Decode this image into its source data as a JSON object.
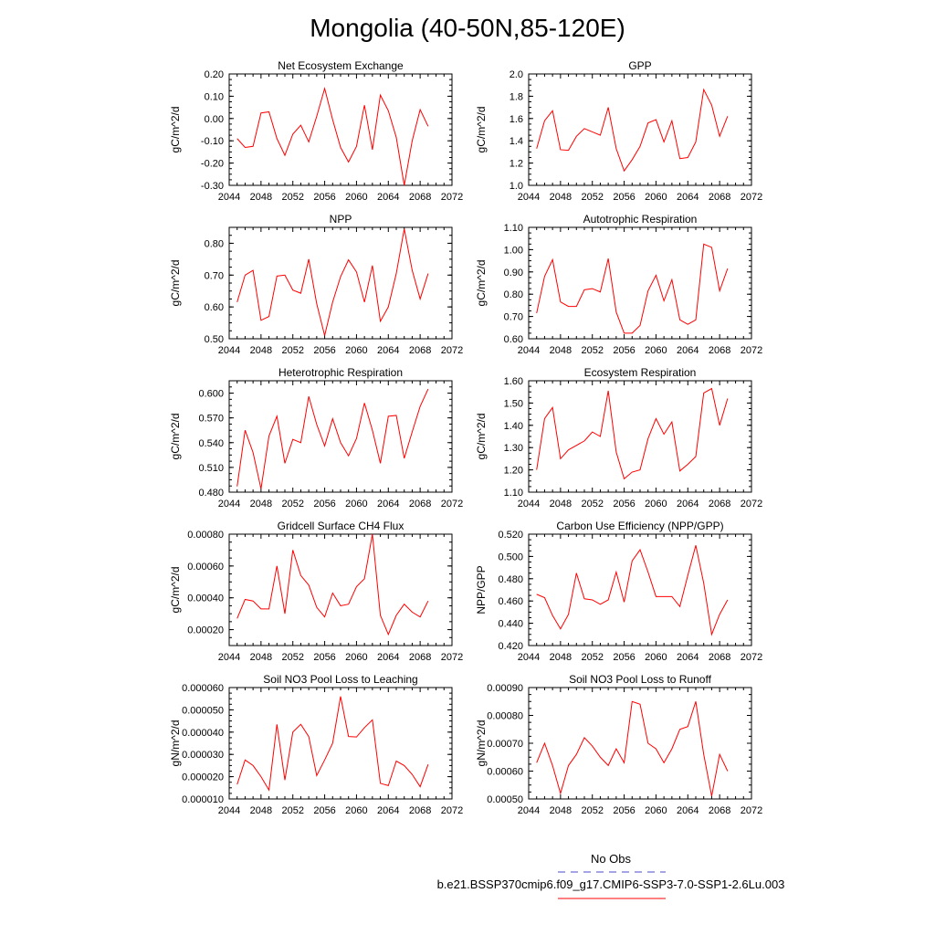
{
  "title": "Mongolia (40-50N,85-120E)",
  "colors": {
    "series": "#ff0000",
    "obs": "#4a4ad0",
    "axes": "#000000"
  },
  "legend": {
    "obs_label": "No Obs",
    "model_label": "b.e21.BSSP370cmip6.f09_g17.CMIP6-SSP3-7.0-SSP1-2.6Lu.003"
  },
  "chart_data": [
    {
      "type": "line",
      "title": "Net Ecosystem Exchange",
      "ylabel": "gC/m^2/d",
      "xlim": [
        2044,
        2072
      ],
      "xticks": [
        2044,
        2048,
        2052,
        2056,
        2060,
        2064,
        2068,
        2072
      ],
      "ylim": [
        -0.3,
        0.2
      ],
      "yticks": [
        "-0.30",
        "-0.20",
        "-0.10",
        "0.00",
        "0.10",
        "0.20"
      ],
      "x": [
        2045,
        2046,
        2047,
        2048,
        2049,
        2050,
        2051,
        2052,
        2053,
        2054,
        2055,
        2056,
        2057,
        2058,
        2059,
        2060,
        2061,
        2062,
        2063,
        2064,
        2065,
        2066,
        2067,
        2068,
        2069
      ],
      "y": [
        -0.09,
        -0.13,
        -0.125,
        0.025,
        0.03,
        -0.09,
        -0.165,
        -0.07,
        -0.03,
        -0.105,
        0.01,
        0.135,
        -0.005,
        -0.13,
        -0.195,
        -0.125,
        0.06,
        -0.14,
        0.105,
        0.035,
        -0.085,
        -0.3,
        -0.1,
        0.04,
        -0.035
      ]
    },
    {
      "type": "line",
      "title": "GPP",
      "ylabel": "gC/m^2/d",
      "xlim": [
        2044,
        2072
      ],
      "xticks": [
        2044,
        2048,
        2052,
        2056,
        2060,
        2064,
        2068,
        2072
      ],
      "ylim": [
        1.0,
        2.0
      ],
      "yticks": [
        "1.0",
        "1.2",
        "1.4",
        "1.6",
        "1.8",
        "2.0"
      ],
      "x": [
        2045,
        2046,
        2047,
        2048,
        2049,
        2050,
        2051,
        2052,
        2053,
        2054,
        2055,
        2056,
        2057,
        2058,
        2059,
        2060,
        2061,
        2062,
        2063,
        2064,
        2065,
        2066,
        2067,
        2068,
        2069
      ],
      "y": [
        1.33,
        1.58,
        1.67,
        1.32,
        1.315,
        1.44,
        1.51,
        1.48,
        1.45,
        1.7,
        1.33,
        1.13,
        1.23,
        1.35,
        1.56,
        1.59,
        1.39,
        1.58,
        1.24,
        1.25,
        1.39,
        1.86,
        1.72,
        1.44,
        1.62
      ]
    },
    {
      "type": "line",
      "title": "NPP",
      "ylabel": "gC/m^2/d",
      "xlim": [
        2044,
        2072
      ],
      "xticks": [
        2044,
        2048,
        2052,
        2056,
        2060,
        2064,
        2068,
        2072
      ],
      "ylim": [
        0.5,
        0.85
      ],
      "yticks": [
        "0.50",
        "0.60",
        "0.70",
        "0.80"
      ],
      "x": [
        2045,
        2046,
        2047,
        2048,
        2049,
        2050,
        2051,
        2052,
        2053,
        2054,
        2055,
        2056,
        2057,
        2058,
        2059,
        2060,
        2061,
        2062,
        2063,
        2064,
        2065,
        2066,
        2067,
        2068,
        2069
      ],
      "y": [
        0.615,
        0.7,
        0.715,
        0.558,
        0.57,
        0.697,
        0.7,
        0.653,
        0.643,
        0.75,
        0.61,
        0.51,
        0.615,
        0.695,
        0.748,
        0.71,
        0.615,
        0.73,
        0.555,
        0.6,
        0.705,
        0.845,
        0.715,
        0.625,
        0.705
      ]
    },
    {
      "type": "line",
      "title": "Autotrophic Respiration",
      "ylabel": "gC/m^2/d",
      "xlim": [
        2044,
        2072
      ],
      "xticks": [
        2044,
        2048,
        2052,
        2056,
        2060,
        2064,
        2068,
        2072
      ],
      "ylim": [
        0.6,
        1.1
      ],
      "yticks": [
        "0.60",
        "0.70",
        "0.80",
        "0.90",
        "1.00",
        "1.10"
      ],
      "x": [
        2045,
        2046,
        2047,
        2048,
        2049,
        2050,
        2051,
        2052,
        2053,
        2054,
        2055,
        2056,
        2057,
        2058,
        2059,
        2060,
        2061,
        2062,
        2063,
        2064,
        2065,
        2066,
        2067,
        2068,
        2069
      ],
      "y": [
        0.715,
        0.88,
        0.955,
        0.765,
        0.745,
        0.745,
        0.82,
        0.825,
        0.81,
        0.96,
        0.72,
        0.625,
        0.625,
        0.66,
        0.815,
        0.885,
        0.77,
        0.865,
        0.685,
        0.665,
        0.685,
        1.025,
        1.01,
        0.815,
        0.915
      ]
    },
    {
      "type": "line",
      "title": "Heterotrophic Respiration",
      "ylabel": "gC/m^2/d",
      "xlim": [
        2044,
        2072
      ],
      "xticks": [
        2044,
        2048,
        2052,
        2056,
        2060,
        2064,
        2068,
        2072
      ],
      "ylim": [
        0.48,
        0.615
      ],
      "yticks": [
        "0.480",
        "0.510",
        "0.540",
        "0.570",
        "0.600"
      ],
      "x": [
        2045,
        2046,
        2047,
        2048,
        2049,
        2050,
        2051,
        2052,
        2053,
        2054,
        2055,
        2056,
        2057,
        2058,
        2059,
        2060,
        2061,
        2062,
        2063,
        2064,
        2065,
        2066,
        2067,
        2068,
        2069
      ],
      "y": [
        0.487,
        0.555,
        0.528,
        0.484,
        0.548,
        0.572,
        0.515,
        0.544,
        0.54,
        0.596,
        0.562,
        0.536,
        0.569,
        0.54,
        0.524,
        0.545,
        0.588,
        0.555,
        0.515,
        0.572,
        0.573,
        0.521,
        0.553,
        0.584,
        0.605
      ]
    },
    {
      "type": "line",
      "title": "Ecosystem Respiration",
      "ylabel": "gC/m^2/d",
      "xlim": [
        2044,
        2072
      ],
      "xticks": [
        2044,
        2048,
        2052,
        2056,
        2060,
        2064,
        2068,
        2072
      ],
      "ylim": [
        1.1,
        1.6
      ],
      "yticks": [
        "1.10",
        "1.20",
        "1.30",
        "1.40",
        "1.50",
        "1.60"
      ],
      "x": [
        2045,
        2046,
        2047,
        2048,
        2049,
        2050,
        2051,
        2052,
        2053,
        2054,
        2055,
        2056,
        2057,
        2058,
        2059,
        2060,
        2061,
        2062,
        2063,
        2064,
        2065,
        2066,
        2067,
        2068,
        2069
      ],
      "y": [
        1.2,
        1.43,
        1.48,
        1.25,
        1.29,
        1.31,
        1.33,
        1.37,
        1.35,
        1.555,
        1.28,
        1.16,
        1.19,
        1.2,
        1.34,
        1.43,
        1.36,
        1.415,
        1.195,
        1.225,
        1.26,
        1.545,
        1.565,
        1.4,
        1.52
      ]
    },
    {
      "type": "line",
      "title": "Gridcell Surface CH4 Flux",
      "ylabel": "gC/m^2/d",
      "xlim": [
        2044,
        2072
      ],
      "xticks": [
        2044,
        2048,
        2052,
        2056,
        2060,
        2064,
        2068,
        2072
      ],
      "ylim": [
        0.0001,
        0.0008
      ],
      "yticks": [
        "0.00020",
        "0.00040",
        "0.00060",
        "0.00080"
      ],
      "x": [
        2045,
        2046,
        2047,
        2048,
        2049,
        2050,
        2051,
        2052,
        2053,
        2054,
        2055,
        2056,
        2057,
        2058,
        2059,
        2060,
        2061,
        2062,
        2063,
        2064,
        2065,
        2066,
        2067,
        2068,
        2069
      ],
      "y": [
        0.00027,
        0.00039,
        0.00038,
        0.00033,
        0.00033,
        0.0006,
        0.0003,
        0.0007,
        0.00054,
        0.00048,
        0.00034,
        0.00028,
        0.00043,
        0.00035,
        0.00036,
        0.00047,
        0.00052,
        0.0008,
        0.00029,
        0.00017,
        0.00029,
        0.00036,
        0.00031,
        0.00028,
        0.00038
      ]
    },
    {
      "type": "line",
      "title": "Carbon Use Efficiency (NPP/GPP)",
      "ylabel": "NPP/GPP",
      "xlim": [
        2044,
        2072
      ],
      "xticks": [
        2044,
        2048,
        2052,
        2056,
        2060,
        2064,
        2068,
        2072
      ],
      "ylim": [
        0.42,
        0.52
      ],
      "yticks": [
        "0.420",
        "0.440",
        "0.460",
        "0.480",
        "0.500",
        "0.520"
      ],
      "x": [
        2045,
        2046,
        2047,
        2048,
        2049,
        2050,
        2051,
        2052,
        2053,
        2054,
        2055,
        2056,
        2057,
        2058,
        2059,
        2060,
        2061,
        2062,
        2063,
        2064,
        2065,
        2066,
        2067,
        2068,
        2069
      ],
      "y": [
        0.466,
        0.463,
        0.447,
        0.435,
        0.448,
        0.485,
        0.462,
        0.461,
        0.457,
        0.461,
        0.486,
        0.459,
        0.496,
        0.506,
        0.486,
        0.464,
        0.464,
        0.464,
        0.455,
        0.483,
        0.51,
        0.476,
        0.43,
        0.448,
        0.461
      ]
    },
    {
      "type": "line",
      "title": "Soil NO3 Pool Loss to Leaching",
      "ylabel": "gN/m^2/d",
      "xlim": [
        2044,
        2072
      ],
      "xticks": [
        2044,
        2048,
        2052,
        2056,
        2060,
        2064,
        2068,
        2072
      ],
      "ylim": [
        1e-05,
        6e-05
      ],
      "yticks": [
        "0.000010",
        "0.000020",
        "0.000030",
        "0.000040",
        "0.000050",
        "0.000060"
      ],
      "x": [
        2045,
        2046,
        2047,
        2048,
        2049,
        2050,
        2051,
        2052,
        2053,
        2054,
        2055,
        2056,
        2057,
        2058,
        2059,
        2060,
        2061,
        2062,
        2063,
        2064,
        2065,
        2066,
        2067,
        2068,
        2069
      ],
      "y": [
        1.65e-05,
        2.75e-05,
        2.5e-05,
        2e-05,
        1.4e-05,
        4.35e-05,
        1.85e-05,
        4e-05,
        4.35e-05,
        3.8e-05,
        2.05e-05,
        2.75e-05,
        3.5e-05,
        5.6e-05,
        3.8e-05,
        3.78e-05,
        4.2e-05,
        4.55e-05,
        1.7e-05,
        1.6e-05,
        2.7e-05,
        2.5e-05,
        2.1e-05,
        1.55e-05,
        2.55e-05
      ]
    },
    {
      "type": "line",
      "title": "Soil NO3 Pool Loss to Runoff",
      "ylabel": "gN/m^2/d",
      "xlim": [
        2044,
        2072
      ],
      "xticks": [
        2044,
        2048,
        2052,
        2056,
        2060,
        2064,
        2068,
        2072
      ],
      "ylim": [
        0.0005,
        0.0009
      ],
      "yticks": [
        "0.00050",
        "0.00060",
        "0.00070",
        "0.00080",
        "0.00090"
      ],
      "x": [
        2045,
        2046,
        2047,
        2048,
        2049,
        2050,
        2051,
        2052,
        2053,
        2054,
        2055,
        2056,
        2057,
        2058,
        2059,
        2060,
        2061,
        2062,
        2063,
        2064,
        2065,
        2066,
        2067,
        2068,
        2069
      ],
      "y": [
        0.00063,
        0.0007,
        0.00062,
        0.00052,
        0.00062,
        0.00066,
        0.00072,
        0.00069,
        0.00065,
        0.00062,
        0.00068,
        0.00063,
        0.00085,
        0.00084,
        0.0007,
        0.00068,
        0.00063,
        0.00068,
        0.00075,
        0.00076,
        0.00085,
        0.00066,
        0.00051,
        0.00066,
        0.0006
      ]
    }
  ]
}
